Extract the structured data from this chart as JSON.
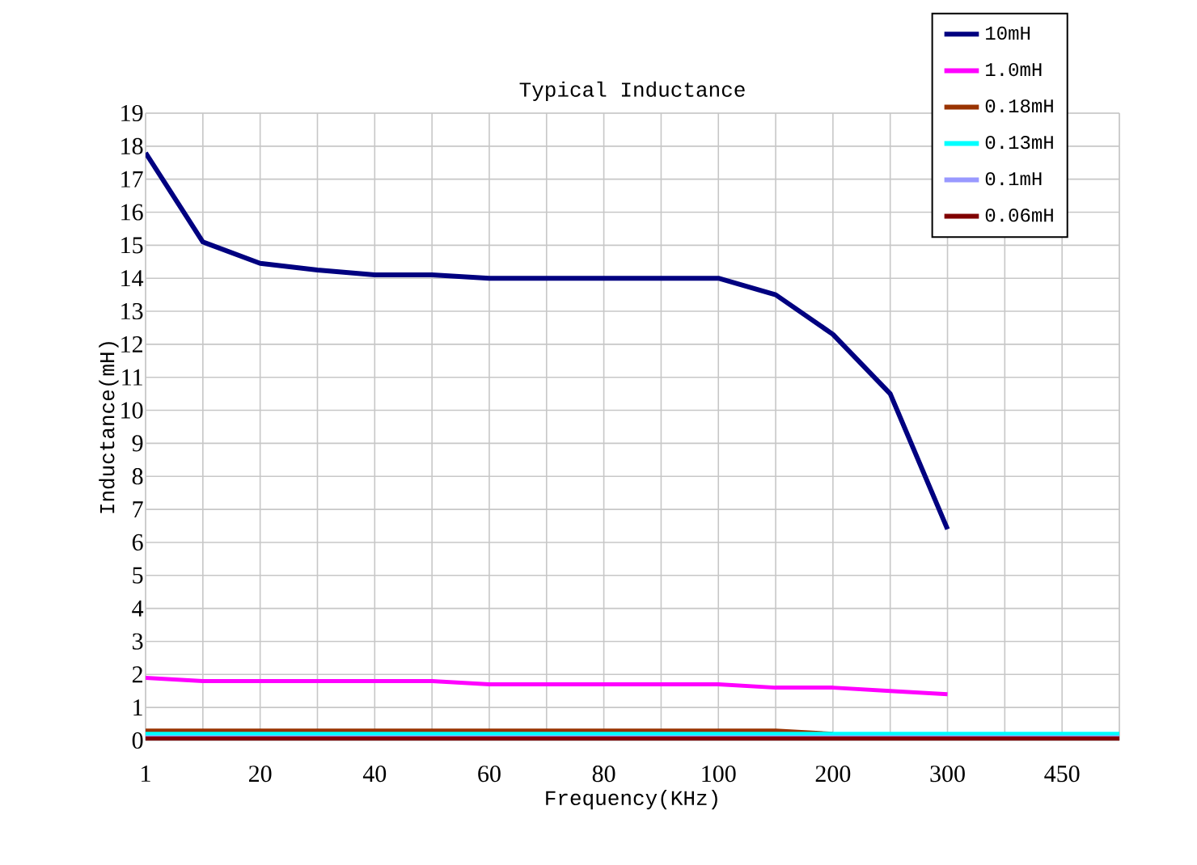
{
  "chart_data": {
    "type": "line",
    "title": "Typical Inductance",
    "xlabel": "Frequency(KHz)",
    "ylabel": "Inductance(mH)",
    "categories": [
      "1",
      null,
      "20",
      null,
      "40",
      null,
      "60",
      null,
      "80",
      null,
      "100",
      null,
      "200",
      null,
      "300",
      null,
      "450",
      null
    ],
    "ylim": [
      0,
      19
    ],
    "yticks": [
      0,
      1,
      2,
      3,
      4,
      5,
      6,
      7,
      8,
      9,
      10,
      11,
      12,
      13,
      14,
      15,
      16,
      17,
      18,
      19
    ],
    "grid": true,
    "legend": "top right",
    "series": [
      {
        "name": "10mH",
        "color": "#000080",
        "values": [
          17.8,
          15.1,
          14.45,
          14.25,
          14.1,
          14.1,
          14.0,
          14.0,
          14.0,
          14.0,
          14.0,
          13.5,
          12.3,
          10.5,
          6.4,
          null,
          null,
          null
        ]
      },
      {
        "name": "1.0mH",
        "color": "#ff00ff",
        "values": [
          1.9,
          1.8,
          1.8,
          1.8,
          1.8,
          1.8,
          1.7,
          1.7,
          1.7,
          1.7,
          1.7,
          1.6,
          1.6,
          1.5,
          1.4,
          null,
          null,
          null
        ]
      },
      {
        "name": "0.18mH",
        "color": "#993300",
        "values": [
          0.3,
          0.3,
          0.3,
          0.3,
          0.3,
          0.3,
          0.3,
          0.3,
          0.3,
          0.3,
          0.3,
          0.3,
          0.2,
          null,
          null,
          null,
          null,
          null
        ]
      },
      {
        "name": "0.13mH",
        "color": "#00ffff",
        "values": [
          0.2,
          0.2,
          0.2,
          0.2,
          0.2,
          0.2,
          0.2,
          0.2,
          0.2,
          0.2,
          0.2,
          0.2,
          0.2,
          0.2,
          0.2,
          0.2,
          0.2,
          0.2
        ]
      },
      {
        "name": "0.1mH",
        "color": "#9999ff",
        "values": [
          0.1,
          0.1,
          0.1,
          0.1,
          0.1,
          0.1,
          0.1,
          0.1,
          0.1,
          0.1,
          0.1,
          0.1,
          0.1,
          0.1,
          0.1,
          0.1,
          0.1,
          0.1
        ]
      },
      {
        "name": "0.06mH",
        "color": "#800000",
        "values": [
          0.06,
          0.06,
          0.06,
          0.06,
          0.06,
          0.06,
          0.06,
          0.06,
          0.06,
          0.06,
          0.06,
          0.06,
          0.06,
          0.06,
          0.06,
          0.06,
          0.06,
          0.06
        ]
      }
    ]
  }
}
